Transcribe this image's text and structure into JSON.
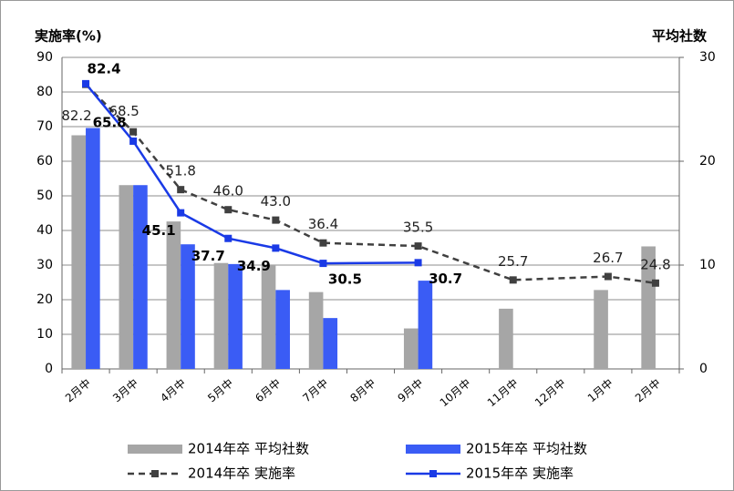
{
  "chart_data": {
    "type": "bar_line",
    "y_label": "実施率(%)",
    "y2_label": "平均社数",
    "categories": [
      "2月中",
      "3月中",
      "4月中",
      "5月中",
      "6月中",
      "7月中",
      "8月中",
      "9月中",
      "10月中",
      "11月中",
      "12月中",
      "1月中",
      "2月中"
    ],
    "series": [
      {
        "name": "2014年卒 平均社数",
        "kind": "bar",
        "axis": "y2",
        "color": "#a6a6a6",
        "values": [
          22.5,
          17.7,
          14.2,
          10.2,
          10.0,
          7.4,
          null,
          3.9,
          null,
          5.8,
          null,
          7.6,
          11.8
        ]
      },
      {
        "name": "2015年卒 平均社数",
        "kind": "bar",
        "axis": "y2",
        "color": "#3a5cf5",
        "values": [
          23.2,
          17.7,
          12.0,
          10.1,
          7.6,
          4.9,
          null,
          8.5,
          null,
          null,
          null,
          null,
          null
        ]
      },
      {
        "name": "2014年卒 実施率",
        "kind": "line",
        "color": "#404040",
        "dashed": true,
        "values": [
          82.2,
          68.5,
          51.8,
          46.0,
          43.0,
          36.4,
          null,
          35.5,
          null,
          25.7,
          null,
          26.7,
          24.8
        ]
      },
      {
        "name": "2015年卒 実施率",
        "kind": "line",
        "color": "#1a3ae6",
        "dashed": false,
        "values": [
          82.4,
          65.8,
          45.1,
          37.7,
          34.9,
          30.5,
          null,
          30.7,
          null,
          null,
          null,
          null,
          null
        ]
      }
    ],
    "ylim": [
      0,
      90
    ],
    "yticks": [
      0,
      10,
      20,
      30,
      40,
      50,
      60,
      70,
      80,
      90
    ],
    "y2lim": [
      0,
      30
    ],
    "y2ticks": [
      0,
      10,
      20,
      30
    ],
    "grid": true,
    "legend": "bottom"
  }
}
